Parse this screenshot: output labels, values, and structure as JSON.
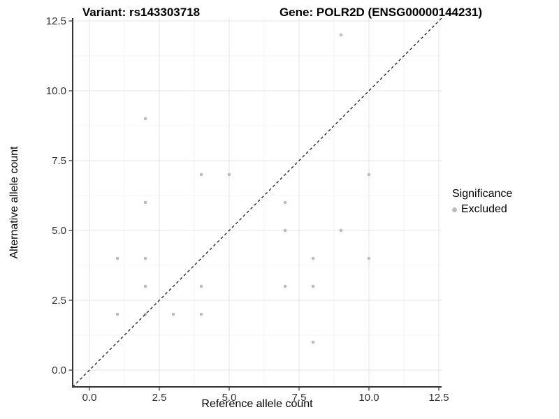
{
  "titles": {
    "left": "Variant: rs143303718",
    "right": "Gene: POLR2D (ENSG00000144231)"
  },
  "chart_data": {
    "type": "scatter",
    "xlabel": "Reference allele count",
    "ylabel": "Alternative allele count",
    "xlim": [
      -0.6,
      12.6
    ],
    "ylim": [
      -0.6,
      12.6
    ],
    "x_ticks": [
      0,
      2.5,
      5,
      7.5,
      10,
      12.5
    ],
    "x_tick_labels": [
      "0.0",
      "2.5",
      "5.0",
      "7.5",
      "10.0",
      "12.5"
    ],
    "y_ticks": [
      0,
      2.5,
      5,
      7.5,
      10,
      12.5
    ],
    "y_tick_labels": [
      "0.0",
      "2.5",
      "5.0",
      "7.5",
      "10.0",
      "12.5"
    ],
    "minor_ticks": [
      1.25,
      3.75,
      6.25,
      8.75,
      11.25
    ],
    "grid": "major+minor",
    "identity_line": {
      "style": "dashed",
      "from": [
        -0.6,
        -0.6
      ],
      "to": [
        12.6,
        12.6
      ],
      "color": "#1a1a1a"
    },
    "series": [
      {
        "name": "Excluded",
        "color": "#bdbdbd",
        "points": [
          [
            1,
            2
          ],
          [
            1,
            4
          ],
          [
            2,
            2
          ],
          [
            2,
            3
          ],
          [
            2,
            4
          ],
          [
            2,
            6
          ],
          [
            2,
            9
          ],
          [
            3,
            2
          ],
          [
            4,
            2
          ],
          [
            4,
            3
          ],
          [
            4,
            7
          ],
          [
            5,
            7
          ],
          [
            7,
            3
          ],
          [
            7,
            5
          ],
          [
            7,
            6
          ],
          [
            8,
            1
          ],
          [
            8,
            3
          ],
          [
            8,
            4
          ],
          [
            9,
            5
          ],
          [
            9,
            12
          ],
          [
            10,
            4
          ],
          [
            10,
            7
          ]
        ]
      }
    ],
    "legend": {
      "title": "Significance",
      "position": "right",
      "items": [
        {
          "label": "Excluded",
          "color": "#bdbdbd"
        }
      ]
    }
  },
  "colors": {
    "background": "#ffffff",
    "grid_major": "#e6e6e6",
    "grid_minor": "#f2f2f2",
    "axis_line": "#333333",
    "tick_label": "#333333",
    "point": "#bdbdbd"
  }
}
